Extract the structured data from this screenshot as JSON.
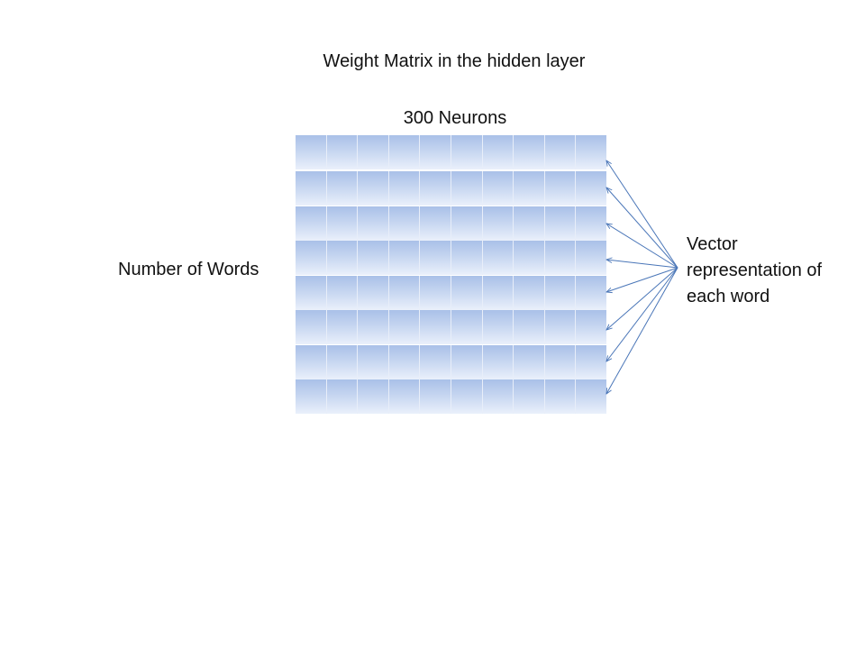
{
  "diagram": {
    "title": "Weight Matrix in the hidden layer",
    "columns_label": "300 Neurons",
    "rows_label": "Number of Words",
    "vector_label_lines": [
      "Vector",
      "representation of",
      "each word"
    ],
    "matrix": {
      "rows": 8,
      "columns": 10
    },
    "colors": {
      "cell_top": "#a9c0e8",
      "cell_bottom": "#eaf0fb",
      "arrow": "#4a76b8"
    }
  }
}
